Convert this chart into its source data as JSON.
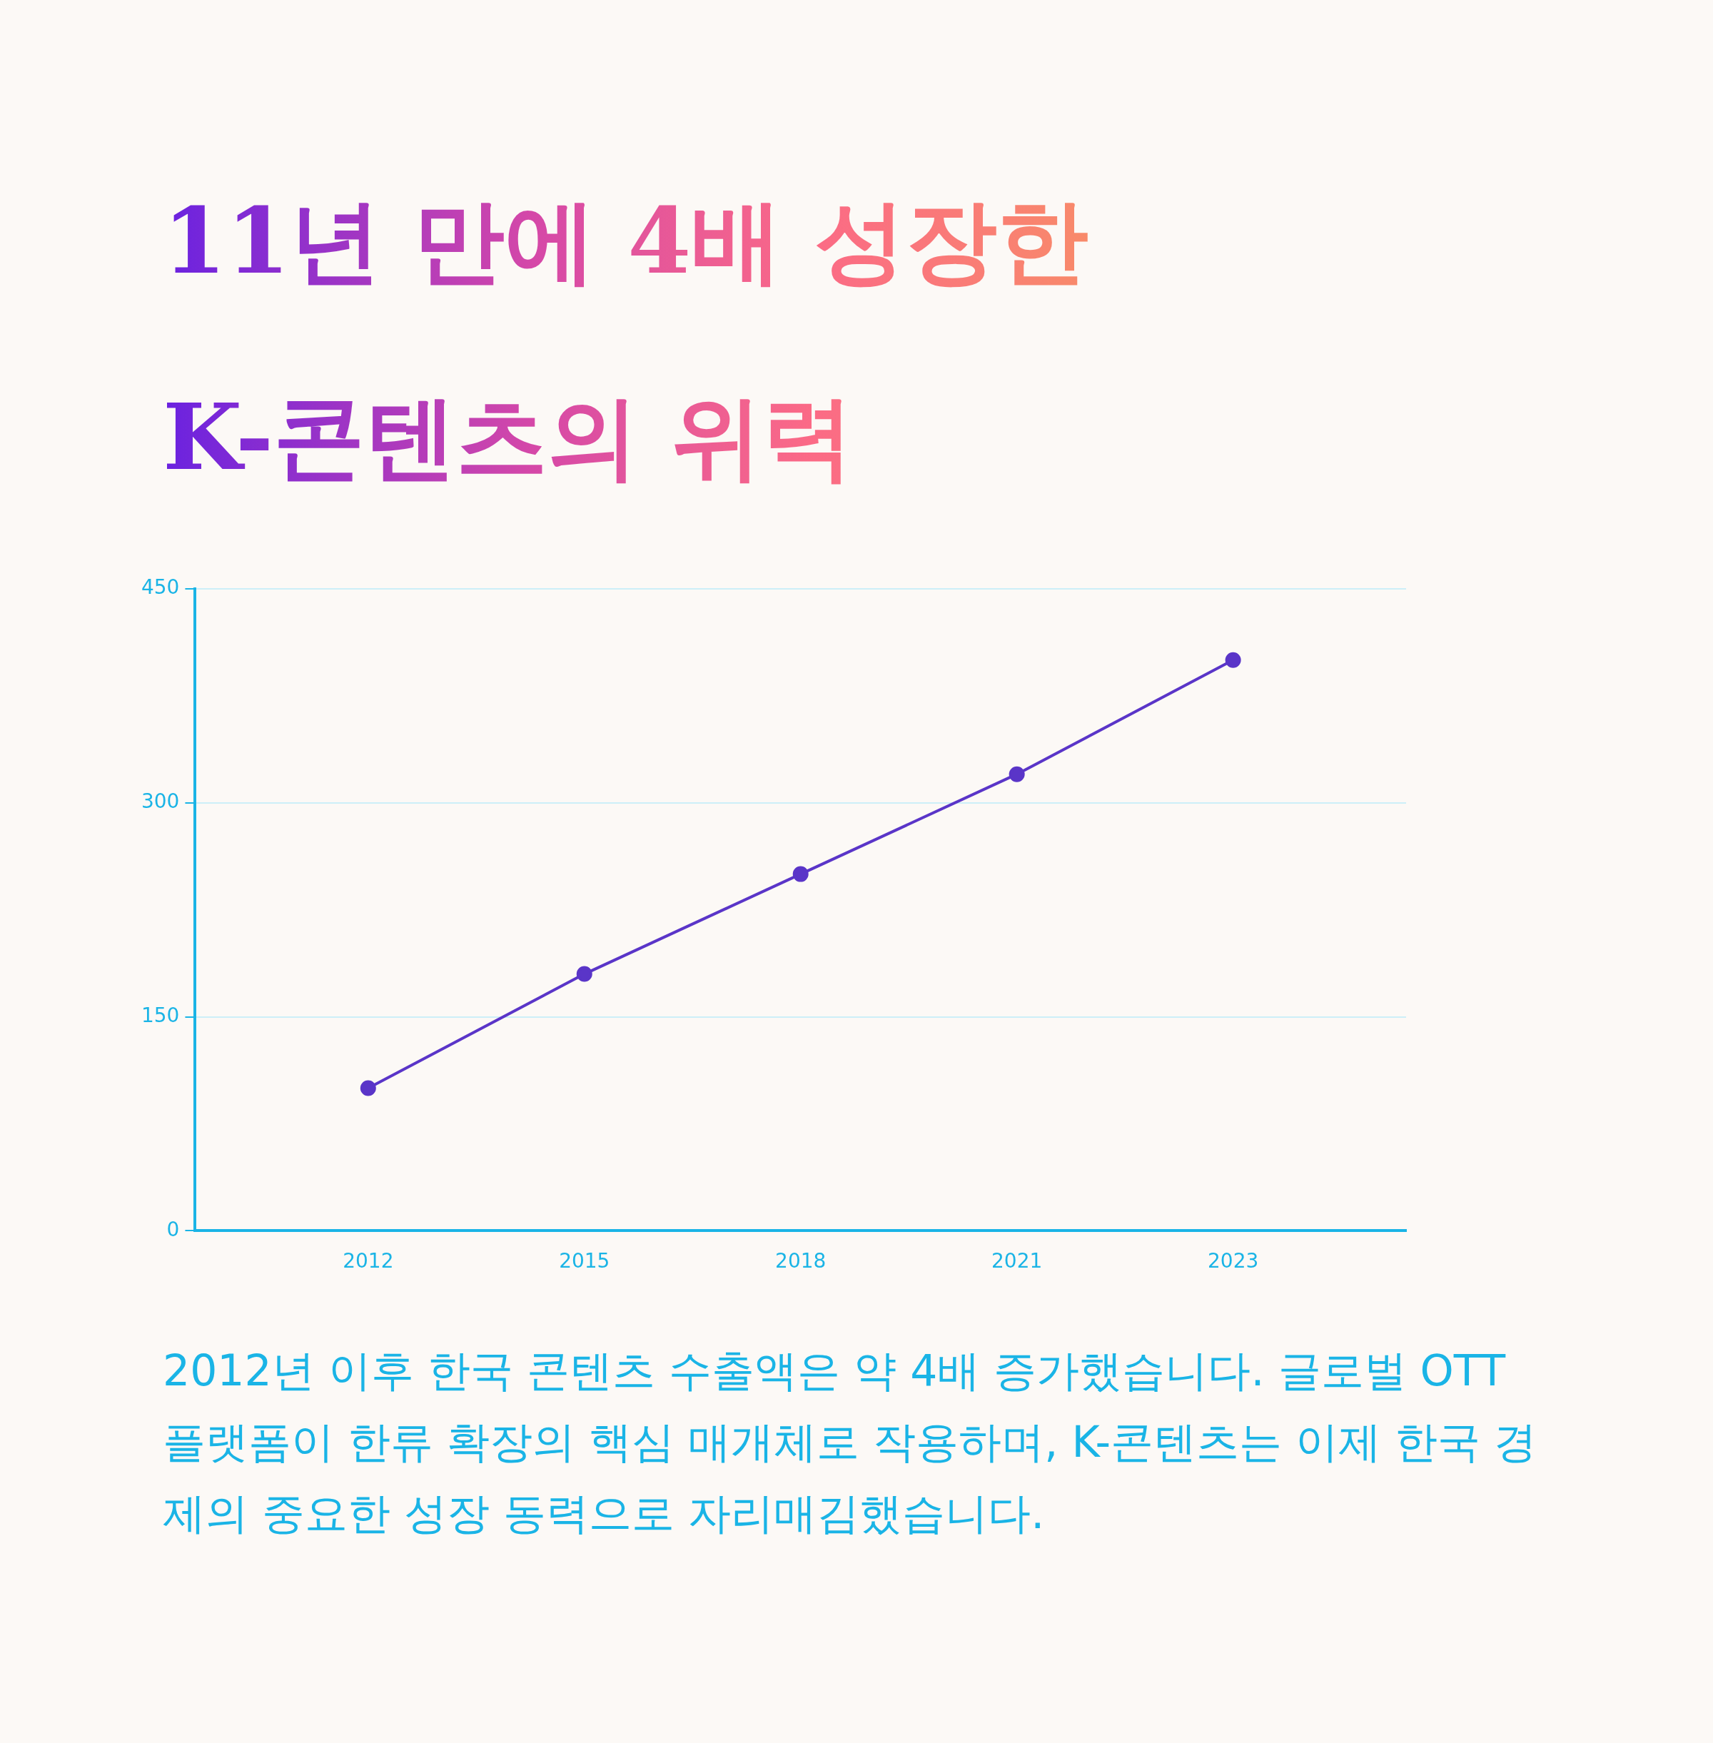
{
  "chart_data": {
    "type": "line",
    "title": "11년 만에 4배 성장한\nK-콘텐츠의 위력",
    "categories": [
      "2012",
      "2015",
      "2018",
      "2021",
      "2023"
    ],
    "series": [
      {
        "color": "#5a35c8",
        "values": [
          100,
          180,
          250,
          320,
          400
        ]
      }
    ],
    "ylim": [
      0,
      450
    ],
    "yticks": [
      0,
      150,
      300,
      450
    ],
    "grid": "y",
    "legend": false,
    "marker": "circle",
    "line_style": "solid",
    "annotations": [
      "2012년 이후 한국 콘텐츠 수출액은 약 4배 증가했습니다. 글로벌 OTT 플랫폼이 한류 확장의 핵심 매개체로 작용하며, K-콘텐츠는 이제 한국 경제의 중요한 성장 동력으로 자리매김했습니다."
    ]
  }
}
